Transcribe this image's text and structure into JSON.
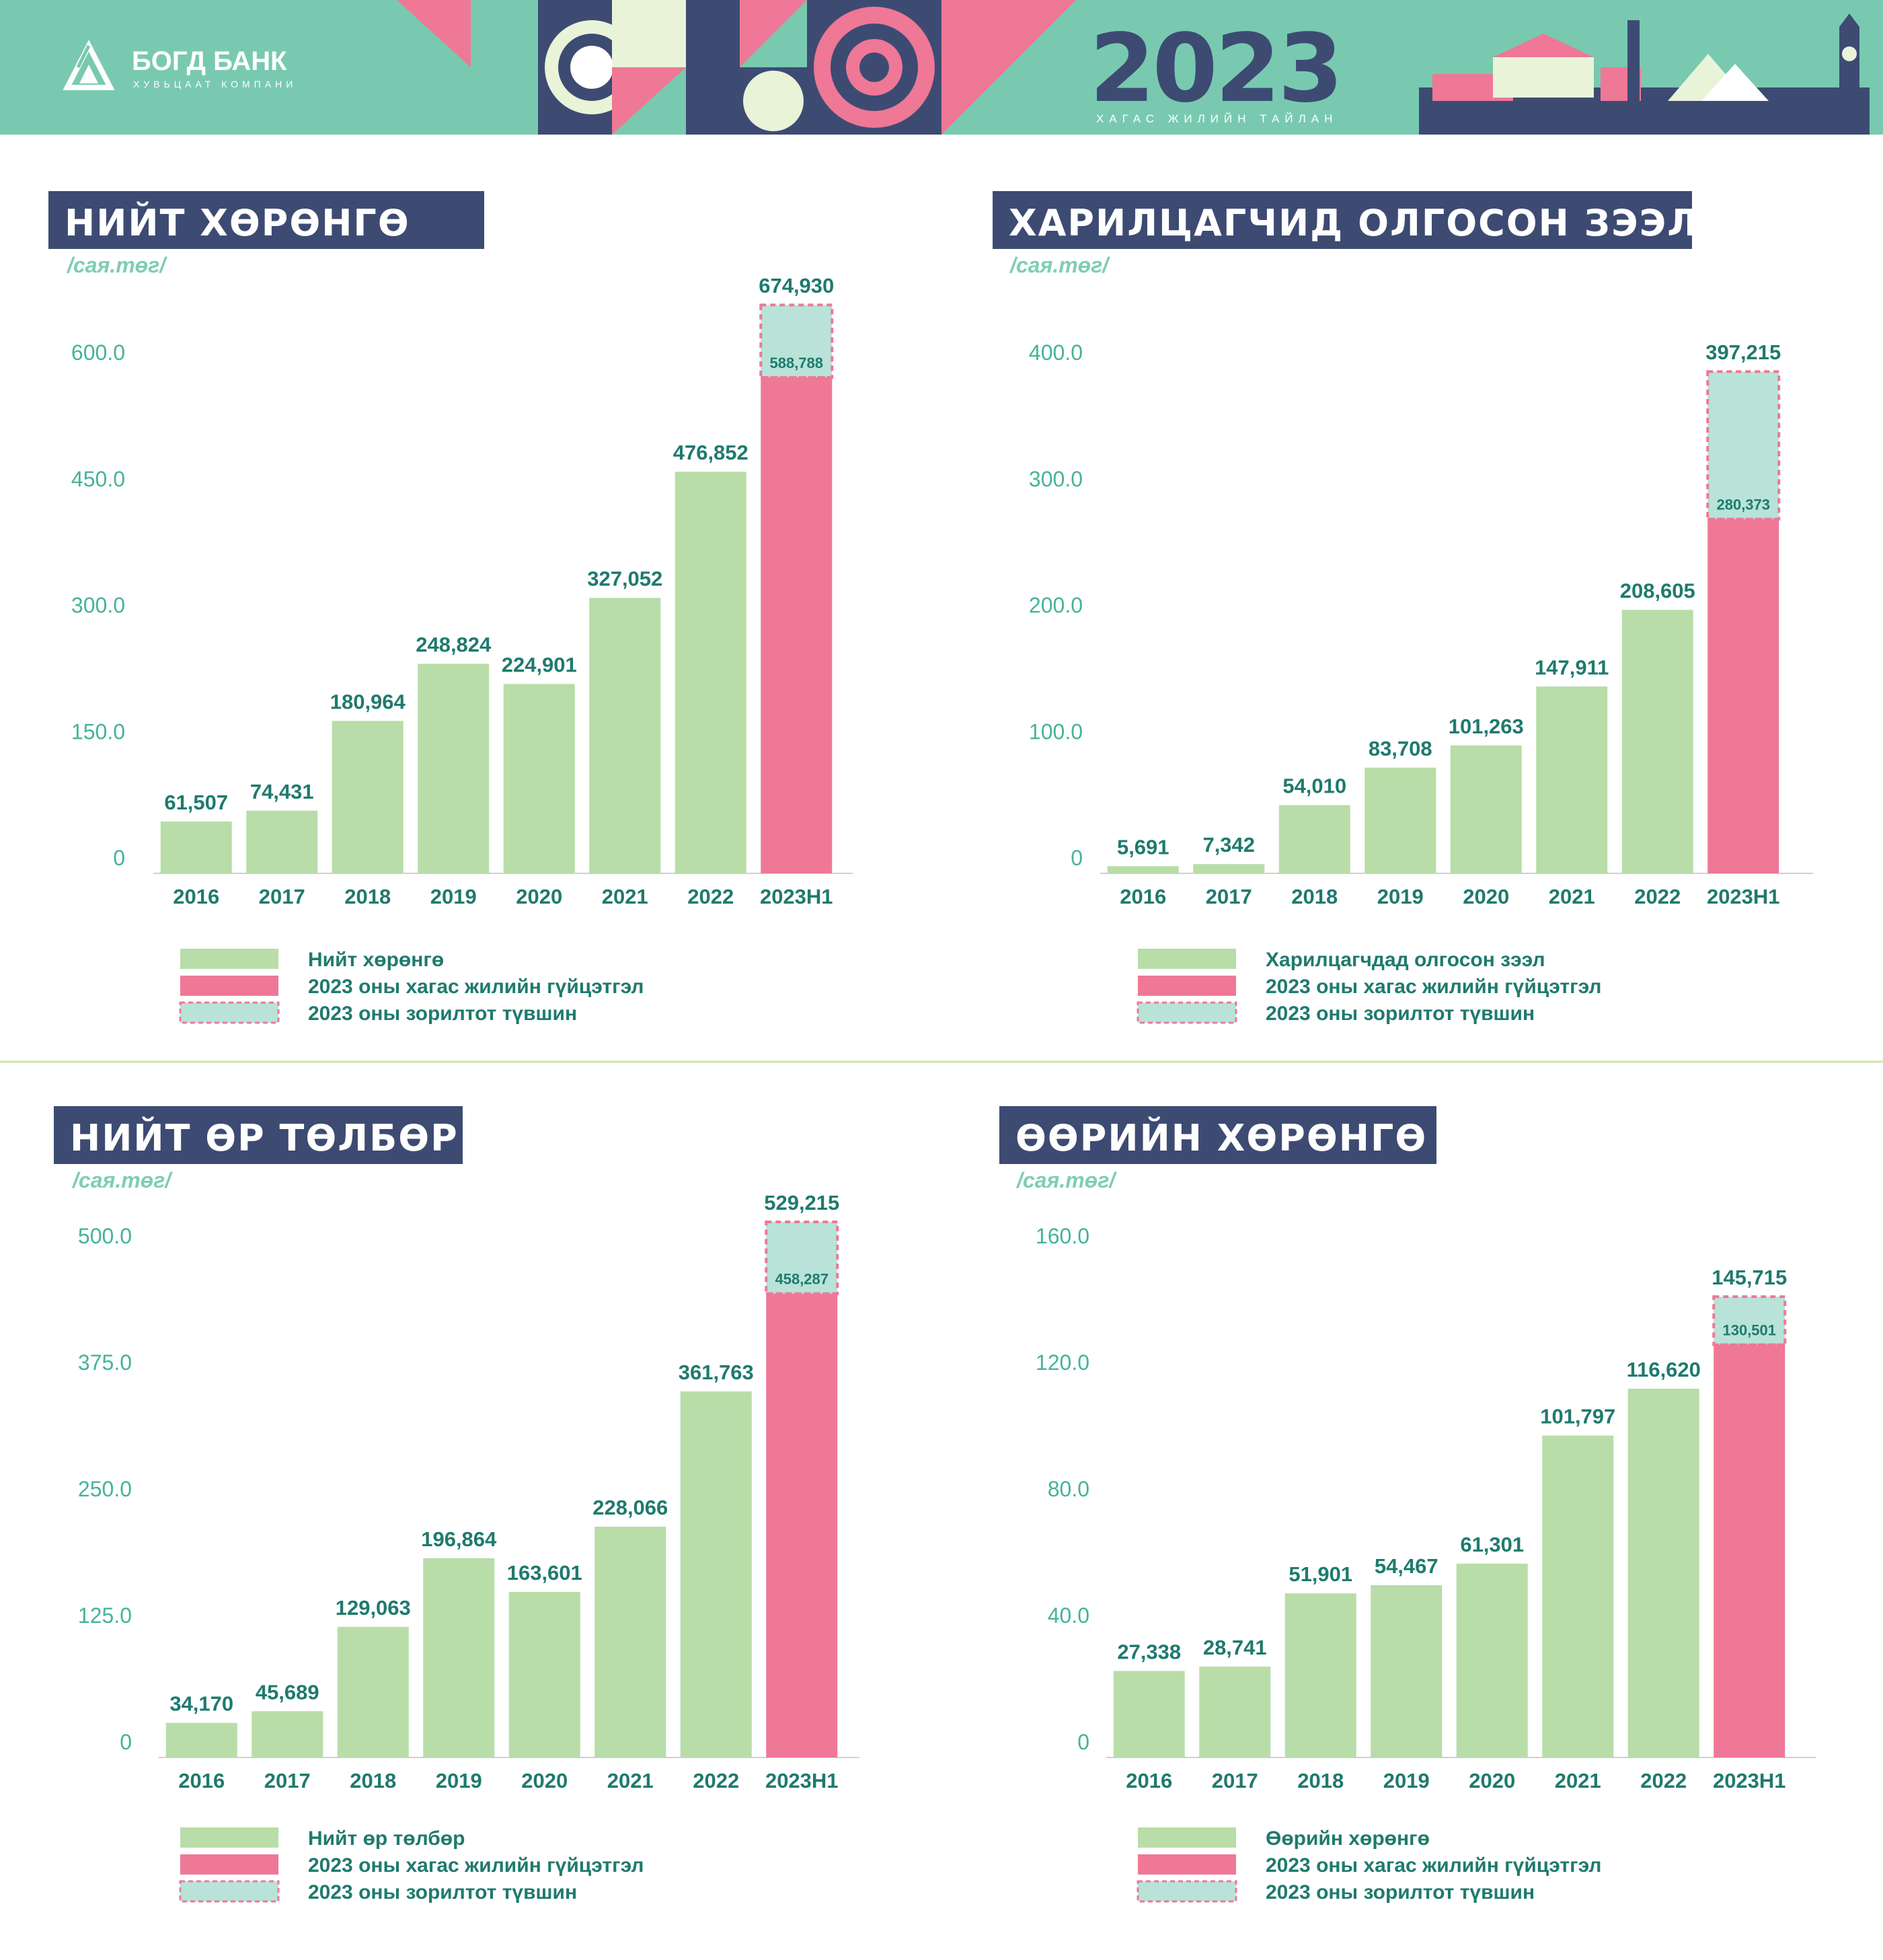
{
  "header": {
    "bank_name": "БОГД БАНК",
    "bank_subtitle": "ХУВЬЦААТ КОМПАНИ",
    "year": "2023",
    "report_title": "ХАГАС ЖИЛИЙН ТАЙЛАН"
  },
  "colors": {
    "banner_bg": "#79c9b0",
    "navy": "#3d4b73",
    "pink": "#ee7896",
    "light_green_bar": "#b8dda8",
    "target_fill": "#b9e3d8",
    "text_teal": "#1f7a6e",
    "divider": "#cfe7a8"
  },
  "legend_swatches": {
    "achieved_label": "2023 оны хагас жилийн гүйцэтгэл",
    "target_label": "2023 оны зорилтот түвшин"
  },
  "chart_data": [
    {
      "type": "bar",
      "title": "НИЙТ ХӨРӨНГӨ",
      "unit": "/сая.төг/",
      "categories": [
        "2016",
        "2017",
        "2018",
        "2019",
        "2020",
        "2021",
        "2022",
        "2023Н1"
      ],
      "values": [
        61507,
        74431,
        180964,
        248824,
        224901,
        327052,
        476852,
        588788
      ],
      "value_labels": [
        "61,507",
        "74,431",
        "180,964",
        "248,824",
        "224,901",
        "327,052",
        "476,852",
        "588,788"
      ],
      "target_value": 674930,
      "target_label": "674,930",
      "yticks": [
        0,
        150,
        300,
        450,
        600
      ],
      "ytick_labels": [
        "0",
        "150.0",
        "300.0",
        "450.0",
        "600.0"
      ],
      "ylim": [
        0,
        600
      ],
      "legend": [
        "Нийт хөрөнгө",
        "2023 оны хагас жилийн гүйцэтгэл",
        "2023 оны зорилтот түвшин"
      ]
    },
    {
      "type": "bar",
      "title": "ХАРИЛЦАГЧИД ОЛГОСОН ЗЭЭЛ",
      "unit": "/сая.төг/",
      "categories": [
        "2016",
        "2017",
        "2018",
        "2019",
        "2020",
        "2021",
        "2022",
        "2023Н1"
      ],
      "values": [
        5691,
        7342,
        54010,
        83708,
        101263,
        147911,
        208605,
        280373
      ],
      "value_labels": [
        "5,691",
        "7,342",
        "54,010",
        "83,708",
        "101,263",
        "147,911",
        "208,605",
        "280,373"
      ],
      "target_value": 397215,
      "target_label": "397,215",
      "yticks": [
        0,
        100,
        200,
        300,
        400
      ],
      "ytick_labels": [
        "0",
        "100.0",
        "200.0",
        "300.0",
        "400.0"
      ],
      "ylim": [
        0,
        400
      ],
      "legend": [
        "Харилцагчдад олгосон зээл",
        "2023 оны хагас жилийн гүйцэтгэл",
        "2023 оны зорилтот түвшин"
      ]
    },
    {
      "type": "bar",
      "title": "НИЙТ ӨР ТӨЛБӨР",
      "unit": "/сая.төг/",
      "categories": [
        "2016",
        "2017",
        "2018",
        "2019",
        "2020",
        "2021",
        "2022",
        "2023Н1"
      ],
      "values": [
        34170,
        45689,
        129063,
        196864,
        163601,
        228066,
        361763,
        458287
      ],
      "value_labels": [
        "34,170",
        "45,689",
        "129,063",
        "196,864",
        "163,601",
        "228,066",
        "361,763",
        "458,287"
      ],
      "target_value": 529215,
      "target_label": "529,215",
      "yticks": [
        0,
        125,
        250,
        375,
        500
      ],
      "ytick_labels": [
        "0",
        "125.0",
        "250.0",
        "375.0",
        "500.0"
      ],
      "ylim": [
        0,
        500
      ],
      "legend": [
        "Нийт өр төлбөр",
        "2023 оны хагас жилийн гүйцэтгэл",
        "2023 оны зорилтот түвшин"
      ]
    },
    {
      "type": "bar",
      "title": "ӨӨРИЙН ХӨРӨНГӨ",
      "unit": "/сая.төг/",
      "categories": [
        "2016",
        "2017",
        "2018",
        "2019",
        "2020",
        "2021",
        "2022",
        "2023Н1"
      ],
      "values": [
        27338,
        28741,
        51901,
        54467,
        61301,
        101797,
        116620,
        130501
      ],
      "value_labels": [
        "27,338",
        "28,741",
        "51,901",
        "54,467",
        "61,301",
        "101,797",
        "116,620",
        "130,501"
      ],
      "target_value": 145715,
      "target_label": "145,715",
      "yticks": [
        0,
        40,
        80,
        120,
        160
      ],
      "ytick_labels": [
        "0",
        "40.0",
        "80.0",
        "120.0",
        "160.0"
      ],
      "ylim": [
        0,
        160
      ],
      "legend": [
        "Өөрийн хөрөнгө",
        "2023 оны хагас жилийн гүйцэтгэл",
        "2023 оны зорилтот түвшин"
      ]
    }
  ]
}
